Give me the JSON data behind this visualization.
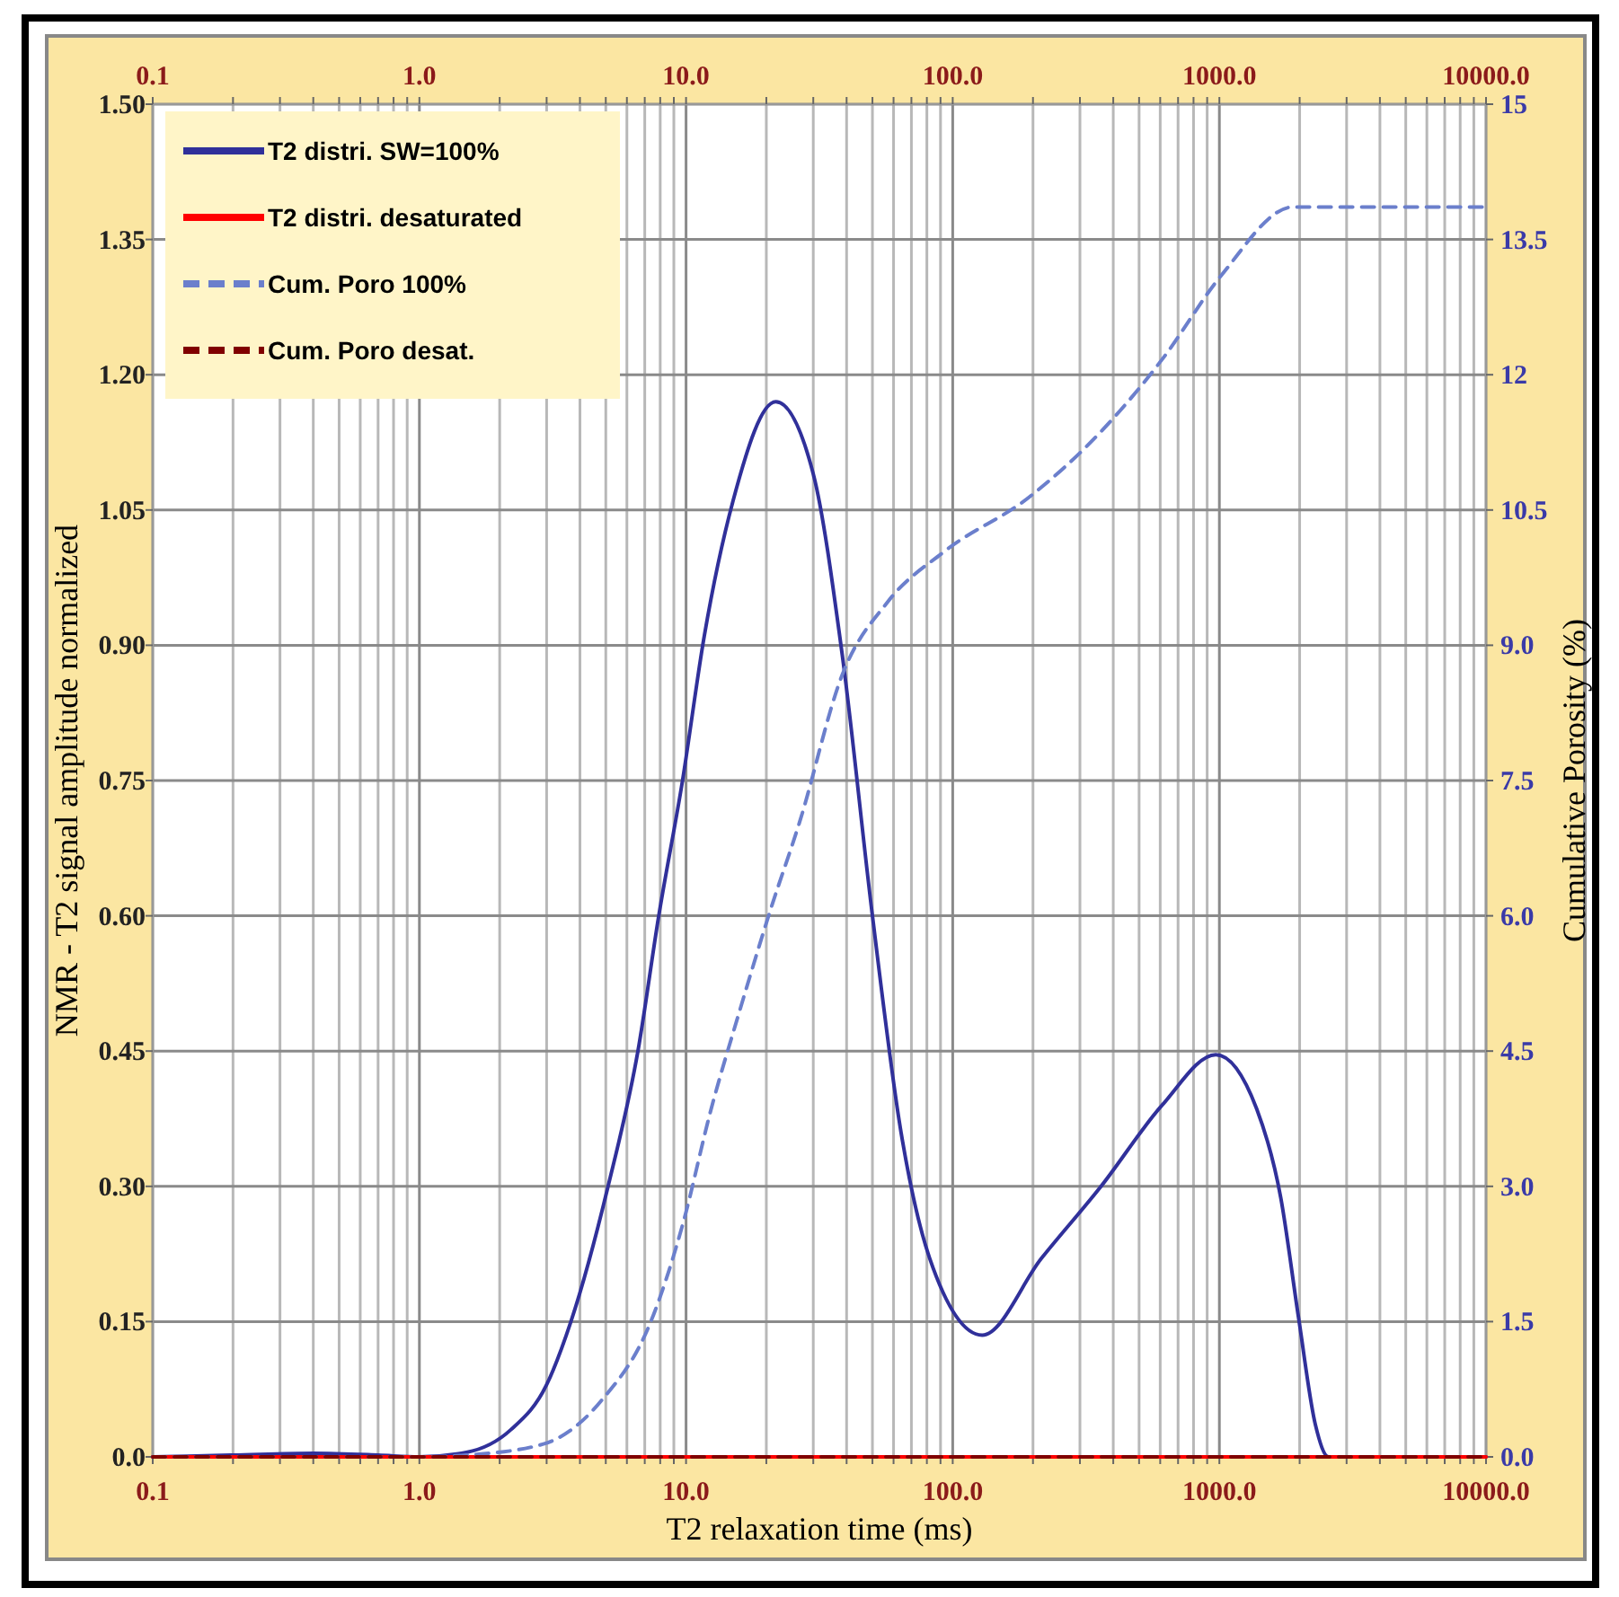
{
  "chart_data": {
    "type": "line",
    "xlabel": "T2 relaxation time (ms)",
    "ylabel": "NMR - T2 signal amplitude normalized",
    "y2label": "Cumulative Porosity (%)",
    "log": "x",
    "grid": true,
    "legend": "top left",
    "xlim": [
      0.1,
      10000
    ],
    "xticks": [
      {
        "value": 0.1,
        "label": "0.1"
      },
      {
        "value": 0.2,
        "label": null
      },
      {
        "value": 0.3,
        "label": null
      },
      {
        "value": 0.4,
        "label": null
      },
      {
        "value": 0.5,
        "label": null
      },
      {
        "value": 0.6,
        "label": null
      },
      {
        "value": 0.7,
        "label": null
      },
      {
        "value": 0.8,
        "label": null
      },
      {
        "value": 0.9,
        "label": null
      },
      {
        "value": 1,
        "label": "1.0"
      },
      {
        "value": 2,
        "label": null
      },
      {
        "value": 3,
        "label": null
      },
      {
        "value": 4,
        "label": null
      },
      {
        "value": 5,
        "label": null
      },
      {
        "value": 6,
        "label": null
      },
      {
        "value": 7,
        "label": null
      },
      {
        "value": 8,
        "label": null
      },
      {
        "value": 9,
        "label": null
      },
      {
        "value": 10,
        "label": "10.0"
      },
      {
        "value": 20,
        "label": null
      },
      {
        "value": 30,
        "label": null
      },
      {
        "value": 40,
        "label": null
      },
      {
        "value": 50,
        "label": null
      },
      {
        "value": 60,
        "label": null
      },
      {
        "value": 70,
        "label": null
      },
      {
        "value": 80,
        "label": null
      },
      {
        "value": 90,
        "label": null
      },
      {
        "value": 100,
        "label": "100.0"
      },
      {
        "value": 200,
        "label": null
      },
      {
        "value": 300,
        "label": null
      },
      {
        "value": 400,
        "label": null
      },
      {
        "value": 500,
        "label": null
      },
      {
        "value": 600,
        "label": null
      },
      {
        "value": 700,
        "label": null
      },
      {
        "value": 800,
        "label": null
      },
      {
        "value": 900,
        "label": null
      },
      {
        "value": 1000,
        "label": "1000.0"
      },
      {
        "value": 2000,
        "label": null
      },
      {
        "value": 3000,
        "label": null
      },
      {
        "value": 4000,
        "label": null
      },
      {
        "value": 5000,
        "label": null
      },
      {
        "value": 6000,
        "label": null
      },
      {
        "value": 7000,
        "label": null
      },
      {
        "value": 8000,
        "label": null
      },
      {
        "value": 9000,
        "label": null
      },
      {
        "value": 10000,
        "label": "10000.0"
      }
    ],
    "ylim": [
      0,
      1.5
    ],
    "yticks": [
      {
        "value": 0,
        "label": "0.0"
      },
      {
        "value": 0.15,
        "label": "0.15"
      },
      {
        "value": 0.3,
        "label": "0.30"
      },
      {
        "value": 0.45,
        "label": "0.45"
      },
      {
        "value": 0.6,
        "label": "0.60"
      },
      {
        "value": 0.75,
        "label": "0.75"
      },
      {
        "value": 0.9,
        "label": "0.90"
      },
      {
        "value": 1.05,
        "label": "1.05"
      },
      {
        "value": 1.2,
        "label": "1.20"
      },
      {
        "value": 1.35,
        "label": "1.35"
      },
      {
        "value": 1.5,
        "label": "1.50"
      }
    ],
    "y2lim": [
      0,
      15
    ],
    "y2ticks": [
      {
        "value": 0,
        "label": "0.0"
      },
      1.5,
      {
        "value": 3,
        "label": "3.0"
      },
      4.5,
      {
        "value": 6,
        "label": "6.0"
      },
      7.5,
      {
        "value": 9,
        "label": "9.0"
      },
      10.5,
      12,
      13.5,
      15
    ],
    "series": [
      {
        "name": "T2 distri. SW=100%",
        "color": "#30309a",
        "line_style": "solid",
        "x": [
          0.1,
          0.2,
          0.4,
          0.7,
          1,
          1.5,
          2.2,
          3,
          3.7,
          5.1,
          6.6,
          7.9,
          9.7,
          11.7,
          15,
          21.7,
          30,
          38.5,
          50,
          64,
          82,
          129,
          215,
          360,
          610,
          970,
          1380,
          1700,
          1980,
          2290,
          2570,
          10000
        ],
        "values": [
          0,
          0.002,
          0.004,
          0.002,
          0,
          0.005,
          0.03,
          0.08,
          0.15,
          0.3,
          0.45,
          0.6,
          0.75,
          0.91,
          1.06,
          1.17,
          1.09,
          0.89,
          0.6,
          0.36,
          0.22,
          0.135,
          0.22,
          0.3,
          0.39,
          0.446,
          0.386,
          0.287,
          0.155,
          0.036,
          0,
          0
        ]
      },
      {
        "name": "T2 distri. desaturated",
        "color": "#ff0000",
        "line_style": "solid",
        "x": [
          0.1,
          10000
        ],
        "values": [
          0,
          0
        ]
      },
      {
        "name": "Cum. Poro 100%",
        "color": "#6b7fcc",
        "line_style": "dashed",
        "axis": "y2",
        "x": [
          0.1,
          1,
          1.5,
          2.9,
          4.8,
          7.4,
          9.7,
          12.4,
          15.9,
          20.7,
          26.6,
          38.5,
          57,
          93,
          193,
          360,
          610,
          1016,
          1890,
          10000
        ],
        "values": [
          0,
          0,
          0.02,
          0.14,
          0.62,
          1.51,
          2.57,
          3.85,
          4.95,
          6.06,
          7.03,
          8.67,
          9.48,
          10.04,
          10.64,
          11.37,
          12.17,
          13.1,
          13.86,
          13.86
        ]
      },
      {
        "name": "Cum. Poro desat.",
        "color": "#800000",
        "line_style": "dashed",
        "axis": "y2",
        "x": [
          0.1,
          10000
        ],
        "values": [
          0,
          0
        ]
      }
    ]
  }
}
